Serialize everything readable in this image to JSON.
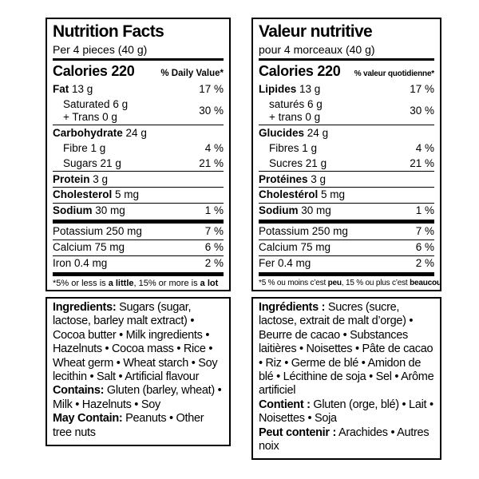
{
  "colors": {
    "text": "#000000",
    "background": "#ffffff",
    "border": "#000000"
  },
  "nutrition_en": {
    "title": "Nutrition Facts",
    "serving": "Per 4 pieces (40 g)",
    "calories": "Calories 220",
    "daily_value_header": "% Daily Value*",
    "fat": {
      "label": "Fat",
      "amount": "13 g",
      "dv": "17 %"
    },
    "saturated": {
      "label": "Saturated",
      "amount": "6 g"
    },
    "trans": {
      "label": "+ Trans",
      "amount": "0 g"
    },
    "saturated_trans_dv": "30 %",
    "carbohydrate": {
      "label": "Carbohydrate",
      "amount": "24 g"
    },
    "fibre": {
      "label": "Fibre",
      "amount": "1 g",
      "dv": "4 %"
    },
    "sugars": {
      "label": "Sugars",
      "amount": "21 g",
      "dv": "21 %"
    },
    "protein": {
      "label": "Protein",
      "amount": "3 g"
    },
    "cholesterol": {
      "label": "Cholesterol",
      "amount": "5 mg"
    },
    "sodium": {
      "label": "Sodium",
      "amount": "30 mg",
      "dv": "1 %"
    },
    "potassium": {
      "label": "Potassium",
      "amount": "250 mg",
      "dv": "7 %"
    },
    "calcium": {
      "label": "Calcium",
      "amount": "75 mg",
      "dv": "6 %"
    },
    "iron": {
      "label": "Iron",
      "amount": "0.4 mg",
      "dv": "2 %"
    },
    "footnote": {
      "part1": "*5% or less is ",
      "bold1": "a little",
      "part2": ", 15% or more is ",
      "bold2": "a lot"
    }
  },
  "nutrition_fr": {
    "title": "Valeur nutritive",
    "serving": "pour 4 morceaux (40 g)",
    "calories": "Calories 220",
    "daily_value_header": "% valeur quotidienne*",
    "fat": {
      "label": "Lipides",
      "amount": "13 g",
      "dv": "17 %"
    },
    "saturated": {
      "label": "saturés",
      "amount": "6 g"
    },
    "trans": {
      "label": "+ trans",
      "amount": "0 g"
    },
    "saturated_trans_dv": "30 %",
    "carbohydrate": {
      "label": "Glucides",
      "amount": "24 g"
    },
    "fibre": {
      "label": "Fibres",
      "amount": "1 g",
      "dv": "4 %"
    },
    "sugars": {
      "label": "Sucres",
      "amount": "21 g",
      "dv": "21 %"
    },
    "protein": {
      "label": "Protéines",
      "amount": "3 g"
    },
    "cholesterol": {
      "label": "Cholestérol",
      "amount": "5 mg"
    },
    "sodium": {
      "label": "Sodium",
      "amount": "30 mg",
      "dv": "1 %"
    },
    "potassium": {
      "label": "Potassium",
      "amount": "250 mg",
      "dv": "7 %"
    },
    "calcium": {
      "label": "Calcium",
      "amount": "75 mg",
      "dv": "6 %"
    },
    "iron": {
      "label": "Fer",
      "amount": "0.4 mg",
      "dv": "2 %"
    },
    "footnote": {
      "part1": "*5 % ou moins c’est ",
      "bold1": "peu",
      "part2": ", 15 % ou plus c’est ",
      "bold2": "beaucoup"
    }
  },
  "ingredients_en": {
    "label": "Ingredients:",
    "text": "Sugars (sugar, lactose, barley malt extract) • Cocoa butter • Milk ingredients • Hazelnuts • Cocoa mass • Rice • Wheat germ • Wheat starch • Soy lecithin • Salt • Artificial flavour",
    "contains_label": "Contains:",
    "contains_text": "Gluten (barley, wheat) • Milk • Hazelnuts • Soy",
    "may_contain_label": "May Contain:",
    "may_contain_text": "Peanuts • Other tree nuts"
  },
  "ingredients_fr": {
    "label": "Ingrédients :",
    "text": "Sucres (sucre, lactose, extrait de malt d’orge) • Beurre de cacao • Substances laitières • Noisettes • Pâte de cacao • Riz • Germe de blé • Amidon de blé • Lécithine de soja • Sel • Arôme artificiel",
    "contains_label": "Contient :",
    "contains_text": "Gluten (orge, blé) • Lait • Noisettes • Soja",
    "may_contain_label": "Peut contenir :",
    "may_contain_text": "Arachides • Autres noix"
  }
}
